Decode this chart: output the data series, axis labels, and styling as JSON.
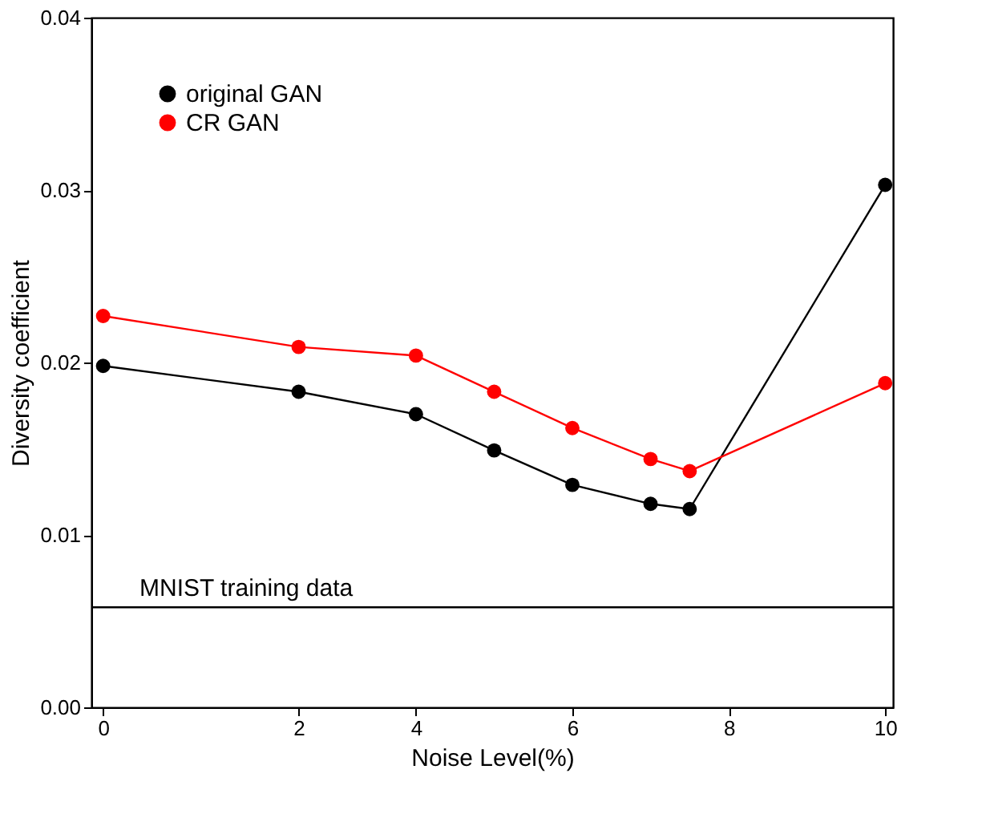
{
  "chart_data": {
    "type": "line",
    "xlabel": "Noise Level(%)",
    "ylabel": "Diversity coefficient",
    "x": [
      0,
      2.5,
      4,
      5,
      6,
      7,
      7.5,
      10
    ],
    "series": [
      {
        "name": "original GAN",
        "color": "#000000",
        "values": [
          0.0198,
          0.0183,
          0.017,
          0.0149,
          0.0129,
          0.0118,
          0.0115,
          0.0303
        ]
      },
      {
        "name": "CR GAN",
        "color": "#ff0000",
        "values": [
          0.0227,
          0.0209,
          0.0204,
          0.0183,
          0.0162,
          0.0144,
          0.0137,
          0.0188
        ]
      }
    ],
    "xlim": [
      -0.15,
      10.1
    ],
    "xticks": [
      0,
      {
        "value": 2.5,
        "label": "2"
      },
      4,
      6,
      8,
      10
    ],
    "ylim": [
      0,
      0.04
    ],
    "yticks": [
      {
        "value": 0,
        "label": "0.00"
      },
      {
        "value": 0.01,
        "label": "0.01"
      },
      {
        "value": 0.02,
        "label": "0.02"
      },
      {
        "value": 0.03,
        "label": "0.03"
      },
      {
        "value": 0.04,
        "label": "0.04"
      }
    ],
    "ref_lines": [
      {
        "axis": "y",
        "value": 0.0058,
        "label": "MNIST training data",
        "color": "#000000"
      }
    ],
    "marker": "circle",
    "line_style": "solid",
    "grid": false,
    "legend": "top left"
  }
}
